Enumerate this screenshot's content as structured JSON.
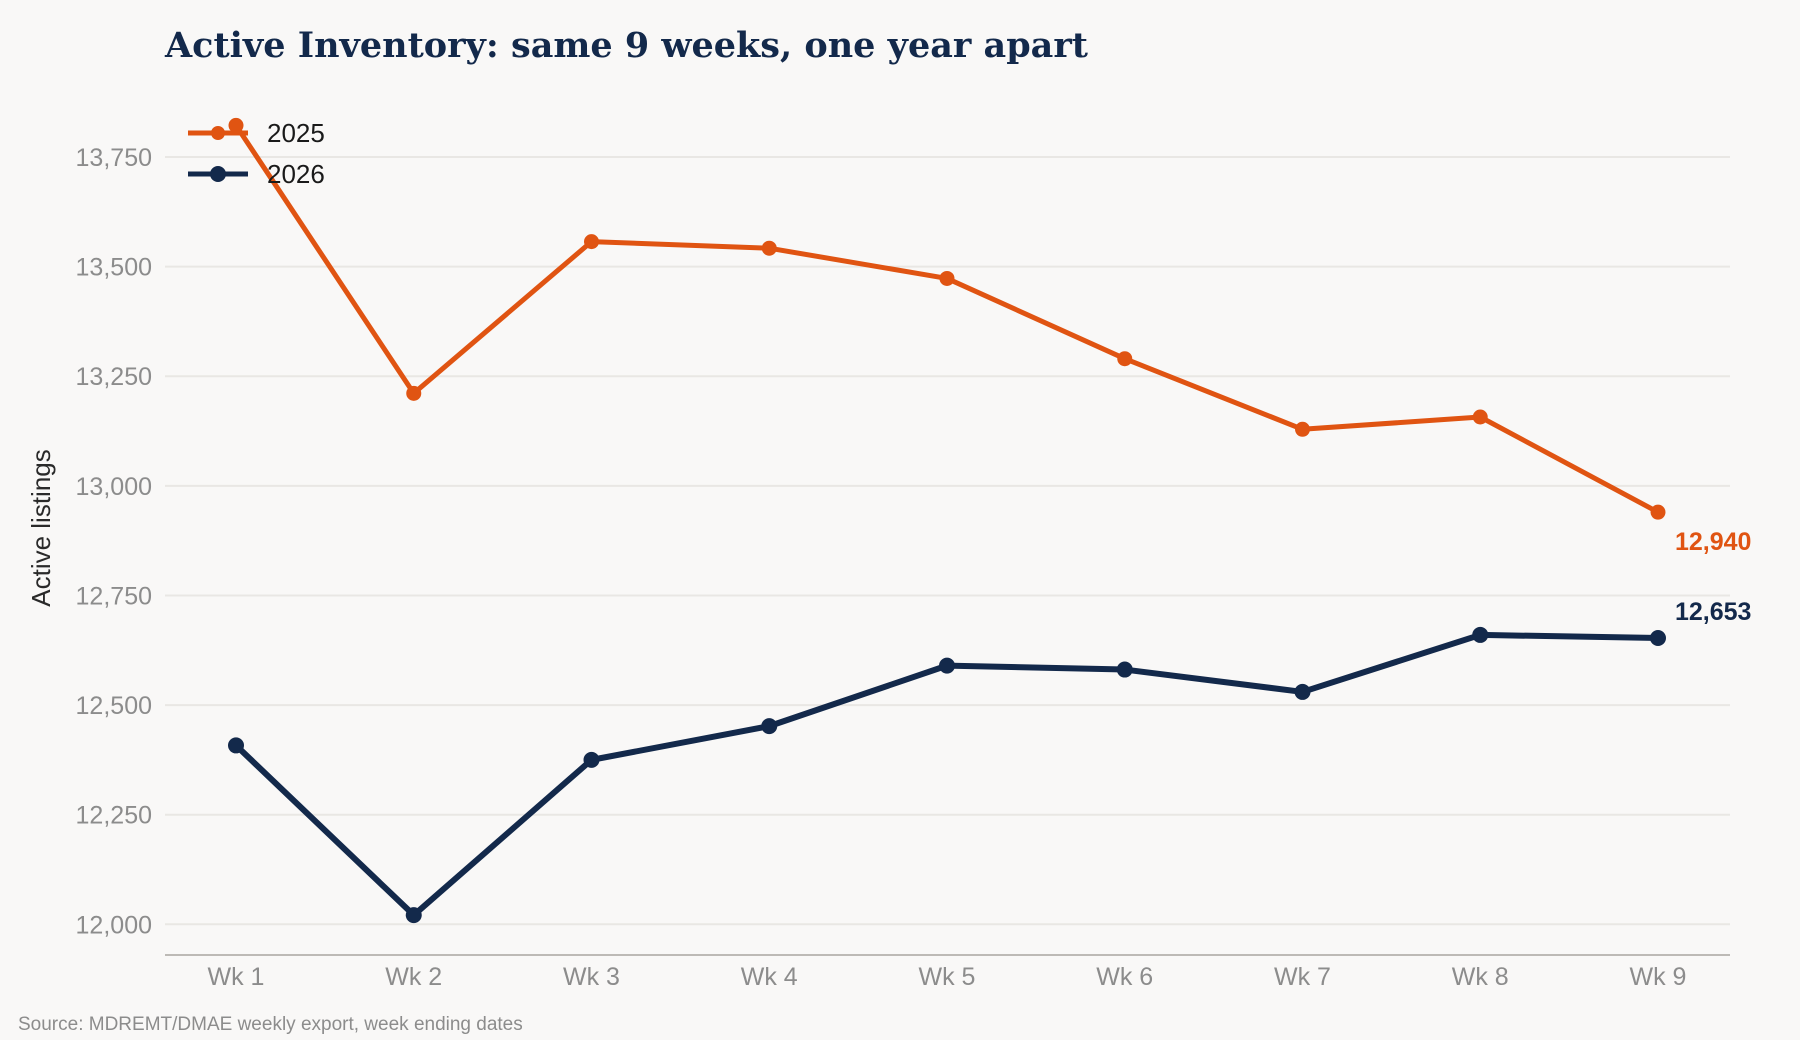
{
  "colors": {
    "s2025": "#e05412",
    "s2026": "#13294b"
  },
  "chart_data": {
    "type": "line",
    "title": "Active Inventory: same 9 weeks, one year apart",
    "ylabel": "Active listings",
    "xlabel": "",
    "categories": [
      "Wk 1",
      "Wk 2",
      "Wk 3",
      "Wk 4",
      "Wk 5",
      "Wk 6",
      "Wk 7",
      "Wk 8",
      "Wk 9"
    ],
    "ylim": [
      11930,
      13880
    ],
    "yticks": [
      12000,
      12250,
      12500,
      12750,
      13000,
      13250,
      13500,
      13750
    ],
    "ytick_labels": [
      "12,000",
      "12,250",
      "12,500",
      "12,750",
      "13,000",
      "13,250",
      "13,500",
      "13,750"
    ],
    "grid": true,
    "legend_position": "top-left",
    "series": [
      {
        "name": "2025",
        "color": "#e05412",
        "values": [
          13822,
          13211,
          13557,
          13542,
          13473,
          13290,
          13129,
          13157,
          12940
        ],
        "end_label": "12,940"
      },
      {
        "name": "2026",
        "color": "#13294b",
        "values": [
          12408,
          12021,
          12375,
          12452,
          12590,
          12581,
          12530,
          12660,
          12653
        ],
        "end_label": "12,653"
      }
    ],
    "source": "Source: MDREMT/DMAE weekly export, week ending dates"
  }
}
